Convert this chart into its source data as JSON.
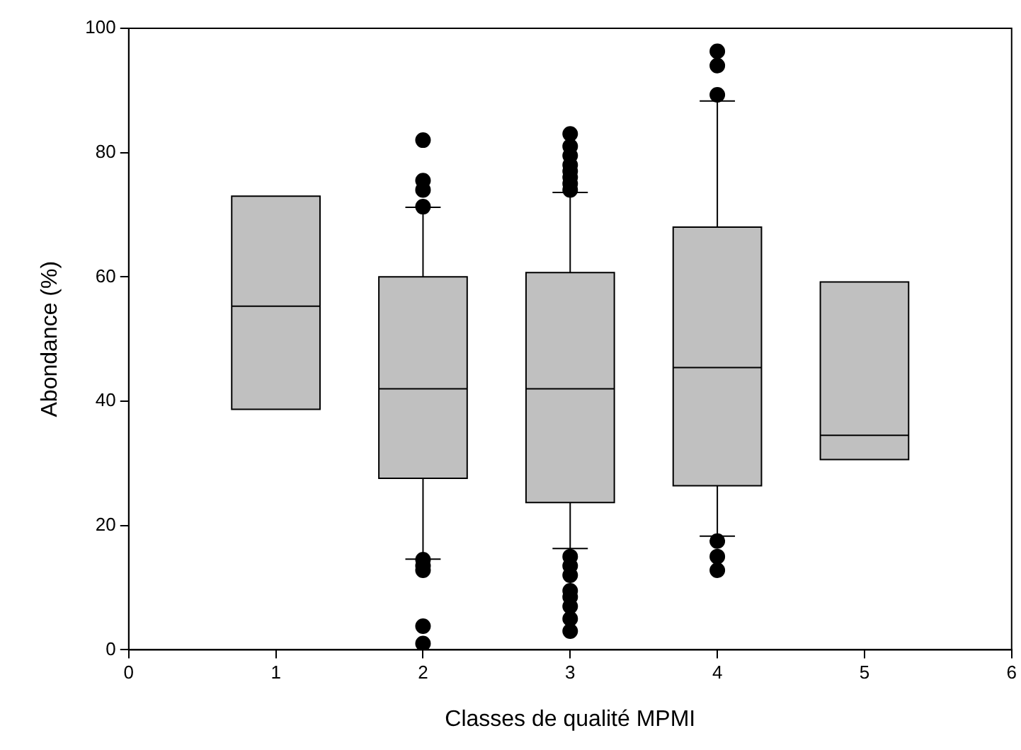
{
  "chart_data": {
    "type": "box",
    "xlabel": "Classes de qualité MPMI",
    "ylabel": "Abondance (%)",
    "x": [
      1,
      2,
      3,
      4,
      5
    ],
    "xlim": [
      0,
      6
    ],
    "xticks": [
      0,
      1,
      2,
      3,
      4,
      5,
      6
    ],
    "ylim": [
      0,
      100
    ],
    "yticks": [
      0,
      20,
      40,
      60,
      80,
      100
    ],
    "grid": false,
    "legend": false,
    "marker": "circle",
    "color": "#c0c0c0",
    "boxes": [
      {
        "low": 38.7,
        "q1": 38.7,
        "median": 55.3,
        "q3": 73,
        "high": 73
      },
      {
        "low": 14.6,
        "q1": 27.6,
        "median": 42,
        "q3": 60,
        "high": 71.2,
        "outliers": [
          82,
          75.5,
          74,
          71.3,
          14.5,
          13.5,
          12.8,
          3.8,
          1
        ]
      },
      {
        "low": 16.3,
        "q1": 23.7,
        "median": 42,
        "q3": 60.7,
        "high": 73.6,
        "outliers": [
          83,
          81,
          79.5,
          78,
          77,
          76,
          75,
          74,
          15,
          13.5,
          12,
          9.5,
          8.5,
          7,
          5,
          3
        ]
      },
      {
        "low": 18.3,
        "q1": 26.4,
        "median": 45.4,
        "q3": 68,
        "high": 88.3,
        "outliers": [
          96.3,
          94,
          89.3,
          17.5,
          15,
          12.8
        ]
      },
      {
        "low": 30.6,
        "q1": 30.6,
        "median": 34.5,
        "q3": 59.2,
        "high": 59.2
      }
    ]
  }
}
